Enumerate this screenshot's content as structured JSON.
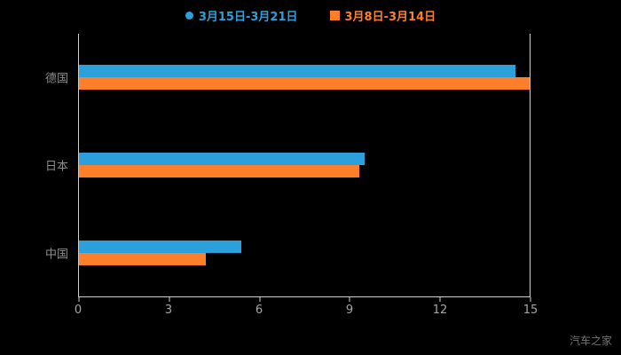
{
  "chart_data": {
    "type": "bar",
    "orientation": "horizontal",
    "title": "",
    "categories": [
      "德国",
      "日本",
      "中国"
    ],
    "series": [
      {
        "name": "3月15日-3月21日",
        "color": "#2ca0db",
        "marker": "circle-icon",
        "values": [
          14.5,
          9.5,
          5.4
        ]
      },
      {
        "name": "3月8日-3月14日",
        "color": "#ff7e29",
        "marker": "square-icon",
        "values": [
          15,
          9.3,
          4.2
        ]
      }
    ],
    "xlim": [
      0,
      15
    ],
    "xticks": [
      0,
      3,
      6,
      9,
      12,
      15
    ],
    "ylabel": "",
    "xlabel": "",
    "legend_position": "top",
    "grid": "off",
    "background_color": "#000000",
    "axis_color": "#cfcfcf",
    "watermark": "汽车之家"
  }
}
